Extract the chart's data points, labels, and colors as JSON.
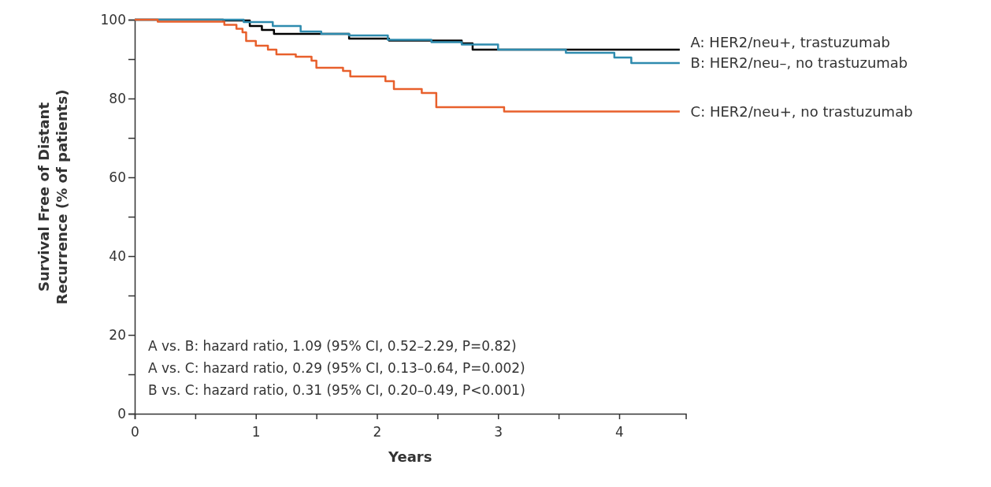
{
  "chart_data": {
    "type": "step",
    "xlabel": "Years",
    "ylabel": "Survival Free of Distant Recurrence (% of patients)",
    "xlim": [
      0,
      4.55
    ],
    "ylim": [
      0,
      100
    ],
    "xticks": [
      0,
      {
        "value": 0.5,
        "label": null
      },
      1,
      {
        "value": 1.5,
        "label": null
      },
      2,
      {
        "value": 2.5,
        "label": null
      },
      3,
      {
        "value": 3.5,
        "label": null
      },
      4
    ],
    "yticks": [
      0,
      {
        "value": 10,
        "label": null
      },
      20,
      {
        "value": 30,
        "label": null
      },
      40,
      {
        "value": 50,
        "label": null
      },
      60,
      {
        "value": 70,
        "label": null
      },
      80,
      {
        "value": 90,
        "label": null
      },
      100
    ],
    "legend": "right",
    "grid": false,
    "marker": "none",
    "line_style": "solid",
    "series": [
      {
        "name": "A: HER2/neu+, trastuzumab",
        "color": "#000000",
        "x": [
          0,
          0.73,
          0.95,
          1.05,
          1.15,
          1.77,
          2.1,
          2.7,
          2.79,
          4.5
        ],
        "values": [
          100,
          99.8,
          98.4,
          97.4,
          96.4,
          95.2,
          94.7,
          94,
          92.4,
          92.4
        ]
      },
      {
        "name": "B: HER2/neu–, no trastuzumab",
        "color": "#2e8bae",
        "x": [
          0,
          0.9,
          1.14,
          1.37,
          1.54,
          1.77,
          2.09,
          2.45,
          2.7,
          3.0,
          3.56,
          3.96,
          4.1,
          4.5
        ],
        "values": [
          100,
          99.4,
          98.4,
          97,
          96.4,
          96,
          94.9,
          94.3,
          93.7,
          92.4,
          91.6,
          90.4,
          89,
          89
        ]
      },
      {
        "name": "C: HER2/neu+, no trastuzumab",
        "color": "#e8602c",
        "x": [
          0,
          0.19,
          0.74,
          0.84,
          0.89,
          0.92,
          1.0,
          1.1,
          1.17,
          1.33,
          1.46,
          1.5,
          1.72,
          1.78,
          2.07,
          2.14,
          2.37,
          2.49,
          3.05,
          4.5
        ],
        "values": [
          100,
          99.5,
          98.7,
          97.7,
          96.8,
          94.6,
          93.4,
          92.4,
          91.2,
          90.6,
          89.6,
          87.8,
          87,
          85.6,
          84.4,
          82.4,
          81.4,
          77.8,
          76.7,
          76.7
        ]
      }
    ],
    "annotations": [
      "A vs. B: hazard ratio, 1.09 (95% CI, 0.52–2.29, P=0.82)",
      "A vs. C: hazard ratio, 0.29 (95% CI, 0.13–0.64, P=0.002)",
      "B vs. C: hazard ratio, 0.31 (95% CI, 0.20–0.49, P<0.001)"
    ]
  }
}
